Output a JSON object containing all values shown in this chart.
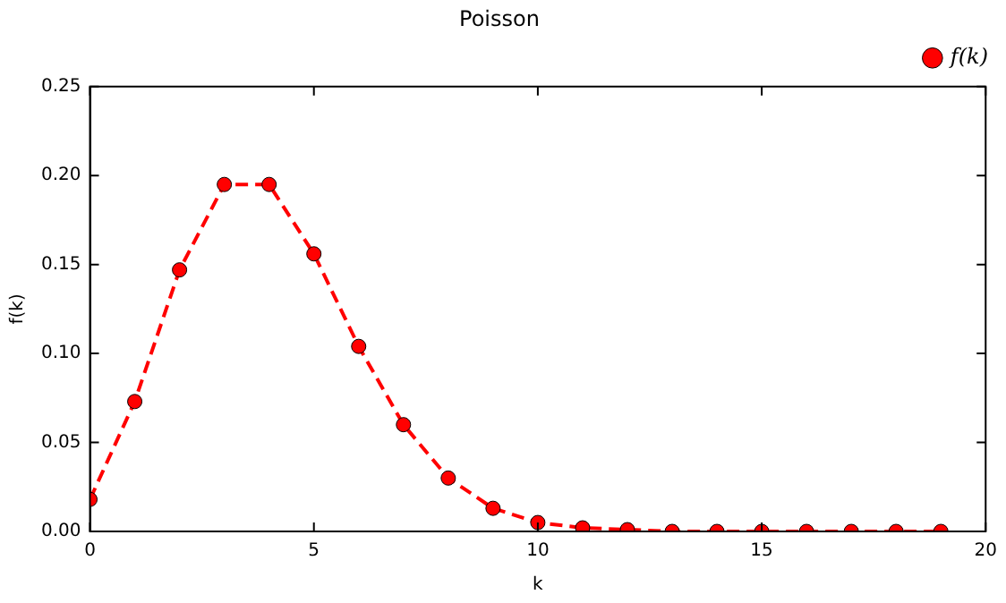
{
  "chart_data": {
    "type": "line",
    "title": "Poisson",
    "xlabel": "k",
    "ylabel": "f(k)",
    "x": [
      0,
      1,
      2,
      3,
      4,
      5,
      6,
      7,
      8,
      9,
      10,
      11,
      12,
      13,
      14,
      15,
      16,
      17,
      18,
      19
    ],
    "series": [
      {
        "name": "f(k)",
        "color": "#ff0000",
        "values": [
          0.018,
          0.073,
          0.147,
          0.195,
          0.195,
          0.156,
          0.104,
          0.06,
          0.03,
          0.013,
          0.005,
          0.002,
          0.001,
          0.0,
          0.0,
          0.0,
          0.0,
          0.0,
          0.0,
          0.0
        ]
      }
    ],
    "xlim": [
      0,
      20
    ],
    "xticks": [
      0,
      5,
      10,
      15,
      20
    ],
    "ylim": [
      0,
      0.25
    ],
    "yticks": [
      {
        "value": 0,
        "label": "0.00"
      },
      {
        "value": 0.05,
        "label": "0.05"
      },
      {
        "value": 0.1,
        "label": "0.10"
      },
      {
        "value": 0.15,
        "label": "0.15"
      },
      {
        "value": 0.2,
        "label": "0.20"
      },
      {
        "value": 0.25,
        "label": "0.25"
      }
    ],
    "grid": false,
    "legend": "top right",
    "marker": "circle",
    "line_style": "dashed"
  }
}
